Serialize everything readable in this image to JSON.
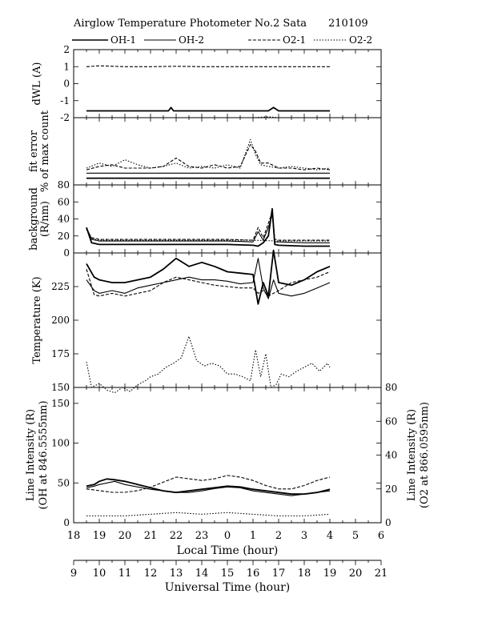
{
  "header": {
    "title": "Airglow Temperature Photometer No.2  Sata",
    "date_code": "210109"
  },
  "legend": {
    "oh1": "OH-1",
    "oh2": "OH-2",
    "o21": "O2-1",
    "o22": "O2-2"
  },
  "chart_data": [
    {
      "id": "dwl",
      "type": "line",
      "ylabel": "dWL (A)",
      "ylim": [
        -2,
        2
      ],
      "yticks": [
        2,
        1,
        0,
        -1,
        -2
      ],
      "x_unit": "local hour",
      "series": [
        {
          "name": "OH-1",
          "style": "solid",
          "x": [
            18.5,
            19,
            20,
            21,
            21.7,
            21.8,
            21.9,
            22,
            23,
            0,
            1,
            1.6,
            1.8,
            2,
            3,
            4
          ],
          "y": [
            -1.6,
            -1.6,
            -1.6,
            -1.6,
            -1.6,
            -1.4,
            -1.6,
            -1.6,
            -1.6,
            -1.6,
            -1.6,
            -1.6,
            -1.4,
            -1.6,
            -1.6,
            -1.6
          ]
        },
        {
          "name": "O2-1",
          "style": "dashed",
          "x": [
            18.5,
            19,
            20,
            21,
            22,
            23,
            0,
            1,
            2,
            3,
            4
          ],
          "y": [
            1.0,
            1.05,
            1.0,
            1.0,
            1.02,
            1.0,
            1.0,
            1.0,
            1.0,
            1.0,
            1.0
          ]
        },
        {
          "name": "O2-2",
          "style": "dotted",
          "x": [
            0,
            1,
            1.6,
            2,
            3,
            4
          ],
          "y": [
            -2.0,
            -2.0,
            -1.95,
            -2.0,
            -2.0,
            -2.0
          ]
        }
      ]
    },
    {
      "id": "fit",
      "type": "line",
      "ylabel": [
        "fit error",
        "% of max count"
      ],
      "ylim": [
        0,
        4
      ],
      "yticks": [],
      "x_unit": "local hour",
      "series": [
        {
          "name": "OH-1",
          "style": "solid",
          "x": [
            18.5,
            19,
            20,
            21,
            22,
            23,
            0,
            1,
            2,
            3,
            4
          ],
          "y": [
            0.4,
            0.4,
            0.4,
            0.4,
            0.4,
            0.4,
            0.4,
            0.4,
            0.4,
            0.4,
            0.4
          ]
        },
        {
          "name": "OH-2",
          "style": "solid",
          "x": [
            18.5,
            19,
            20,
            21,
            22,
            23,
            0,
            1,
            2,
            3,
            4
          ],
          "y": [
            0.7,
            0.7,
            0.7,
            0.7,
            0.7,
            0.7,
            0.7,
            0.7,
            0.7,
            0.7,
            0.7
          ]
        },
        {
          "name": "O2-1",
          "style": "dashed",
          "x": [
            18.5,
            19,
            19.5,
            20,
            20.5,
            21,
            21.5,
            22,
            22.5,
            23,
            23.5,
            0,
            0.5,
            0.9,
            1.1,
            1.3,
            1.6,
            2,
            2.5,
            3,
            3.5,
            4
          ],
          "y": [
            0.9,
            1.1,
            1.2,
            1.0,
            1.0,
            1.0,
            1.1,
            1.6,
            1.1,
            1.0,
            1.2,
            1.0,
            1.1,
            2.4,
            2.0,
            1.3,
            1.3,
            1.0,
            1.0,
            0.9,
            1.0,
            0.9
          ]
        },
        {
          "name": "O2-2",
          "style": "dotted",
          "x": [
            18.5,
            19,
            19.5,
            20,
            20.5,
            21,
            21.5,
            22,
            22.5,
            23,
            23.5,
            0,
            0.5,
            0.9,
            1.1,
            1.3,
            1.6,
            2,
            2.5,
            3,
            3.5,
            4
          ],
          "y": [
            1.0,
            1.3,
            1.1,
            1.5,
            1.2,
            1.0,
            1.1,
            1.3,
            1.0,
            1.1,
            1.0,
            1.2,
            1.0,
            2.7,
            1.8,
            1.2,
            1.1,
            1.0,
            1.1,
            1.0,
            0.9,
            1.0
          ]
        }
      ]
    },
    {
      "id": "bg",
      "type": "line",
      "ylabel": [
        "background",
        "(R/nm)"
      ],
      "ylim": [
        0,
        80
      ],
      "yticks": [
        80,
        60,
        40,
        20,
        0
      ],
      "x_unit": "local hour",
      "series": [
        {
          "name": "OH-1",
          "style": "solid",
          "x": [
            18.5,
            18.7,
            19,
            20,
            21,
            22,
            23,
            0,
            1,
            1.2,
            1.4,
            1.6,
            1.75,
            1.85,
            2,
            3,
            4
          ],
          "y": [
            30,
            12,
            10,
            10,
            10,
            10,
            10,
            10,
            9,
            8,
            12,
            20,
            52,
            10,
            9,
            8,
            8
          ]
        },
        {
          "name": "OH-2",
          "style": "solid",
          "x": [
            18.5,
            18.7,
            19,
            20,
            21,
            22,
            23,
            0,
            1,
            1.2,
            1.4,
            1.6,
            1.75,
            1.85,
            2,
            3,
            4
          ],
          "y": [
            30,
            16,
            14,
            14,
            14,
            14,
            14,
            14,
            13,
            25,
            15,
            30,
            45,
            13,
            13,
            12,
            12
          ]
        },
        {
          "name": "O2-1",
          "style": "dashed",
          "x": [
            18.5,
            18.7,
            19,
            20,
            21,
            22,
            23,
            0,
            1,
            1.2,
            1.4,
            1.6,
            1.75,
            1.85,
            2,
            3,
            4
          ],
          "y": [
            28,
            18,
            16,
            16,
            16,
            16,
            16,
            16,
            15,
            30,
            18,
            35,
            48,
            16,
            15,
            15,
            15
          ]
        },
        {
          "name": "O2-2",
          "style": "dotted",
          "x": [
            18.5,
            18.7,
            19,
            20,
            21,
            22,
            23,
            0,
            1,
            2,
            3,
            4
          ],
          "y": [
            28,
            17,
            15,
            15,
            15,
            15,
            15,
            15,
            15,
            14,
            14,
            14
          ]
        }
      ]
    },
    {
      "id": "temp",
      "type": "line",
      "ylabel": "Temperature (K)",
      "ylim": [
        150,
        250
      ],
      "yticks": [
        225,
        200,
        175,
        150
      ],
      "x_unit": "local hour",
      "series": [
        {
          "name": "OH-1",
          "style": "solid",
          "x": [
            18.5,
            18.8,
            19,
            19.5,
            20,
            20.5,
            21,
            21.5,
            22,
            22.5,
            23,
            23.5,
            0,
            0.5,
            1,
            1.2,
            1.4,
            1.6,
            1.8,
            2,
            2.5,
            3,
            3.5,
            4
          ],
          "y": [
            242,
            232,
            230,
            228,
            228,
            230,
            232,
            238,
            246,
            240,
            243,
            240,
            236,
            235,
            234,
            212,
            228,
            218,
            252,
            228,
            226,
            230,
            236,
            240
          ]
        },
        {
          "name": "OH-2",
          "style": "solid",
          "x": [
            18.5,
            18.8,
            19,
            19.5,
            20,
            20.5,
            21,
            21.5,
            22,
            22.5,
            23,
            23.5,
            0,
            0.5,
            1,
            1.2,
            1.4,
            1.6,
            1.8,
            2,
            2.5,
            3,
            3.5,
            4
          ],
          "y": [
            230,
            222,
            220,
            222,
            220,
            224,
            226,
            228,
            230,
            232,
            230,
            230,
            229,
            227,
            228,
            246,
            224,
            216,
            230,
            220,
            218,
            220,
            224,
            228
          ]
        },
        {
          "name": "O2-1",
          "style": "dashed",
          "x": [
            18.5,
            18.8,
            19,
            19.5,
            20,
            20.5,
            21,
            21.5,
            22,
            22.5,
            23,
            23.5,
            0,
            0.5,
            1,
            1.2,
            1.4,
            1.6,
            1.8,
            2,
            2.5,
            3,
            3.5,
            4
          ],
          "y": [
            238,
            219,
            218,
            220,
            218,
            220,
            222,
            228,
            232,
            230,
            228,
            226,
            225,
            224,
            224,
            220,
            222,
            218,
            220,
            222,
            228,
            230,
            232,
            236
          ]
        },
        {
          "name": "O2-2",
          "style": "dotted",
          "x": [
            18.5,
            18.7,
            19,
            19.3,
            19.6,
            19.9,
            20.2,
            20.5,
            20.8,
            21,
            21.3,
            21.6,
            21.9,
            22.2,
            22.5,
            22.8,
            23.1,
            23.4,
            23.7,
            0,
            0.3,
            0.6,
            0.9,
            1.1,
            1.3,
            1.5,
            1.7,
            1.9,
            2.1,
            2.4,
            2.7,
            3,
            3.3,
            3.6,
            3.9,
            4
          ],
          "y": [
            169,
            150,
            153,
            148,
            146,
            150,
            147,
            152,
            155,
            158,
            160,
            165,
            168,
            172,
            188,
            170,
            166,
            168,
            166,
            160,
            160,
            158,
            155,
            178,
            158,
            175,
            150,
            152,
            160,
            158,
            162,
            165,
            168,
            162,
            168,
            165
          ]
        }
      ]
    },
    {
      "id": "int",
      "type": "line",
      "ylabel_left": [
        "Line Intensity (R)",
        "(OH at 846.5555nm)"
      ],
      "ylabel_right": [
        "Line Intensity (R)",
        "(O2 at 866.0595nm)"
      ],
      "ylim": [
        0,
        170
      ],
      "yticks": [
        150,
        100,
        50,
        0
      ],
      "ylim_right": [
        0,
        80
      ],
      "yticks_right": [
        80,
        60,
        40,
        20,
        0
      ],
      "x_unit": "local hour",
      "series": [
        {
          "name": "OH-1",
          "style": "solid",
          "x": [
            18.5,
            18.8,
            19,
            19.3,
            19.6,
            20,
            20.5,
            21,
            21.5,
            22,
            22.5,
            23,
            23.5,
            0,
            0.5,
            1,
            1.5,
            2,
            2.5,
            3,
            3.5,
            4
          ],
          "y": [
            46,
            48,
            52,
            55,
            54,
            52,
            48,
            44,
            40,
            38,
            40,
            42,
            44,
            46,
            45,
            42,
            40,
            38,
            36,
            36,
            38,
            42
          ]
        },
        {
          "name": "OH-2",
          "style": "solid",
          "x": [
            18.5,
            18.8,
            19,
            19.3,
            19.6,
            20,
            20.5,
            21,
            21.5,
            22,
            22.5,
            23,
            23.5,
            0,
            0.5,
            1,
            1.5,
            2,
            2.5,
            3,
            3.5,
            4
          ],
          "y": [
            44,
            46,
            48,
            50,
            52,
            48,
            45,
            42,
            40,
            38,
            38,
            40,
            43,
            45,
            44,
            40,
            38,
            36,
            34,
            36,
            38,
            40
          ]
        },
        {
          "name": "O2-1",
          "style": "dashed",
          "axis": "right",
          "x": [
            18.5,
            19,
            19.5,
            20,
            20.5,
            21,
            21.5,
            22,
            22.5,
            23,
            23.5,
            0,
            0.5,
            1,
            1.5,
            2,
            2.5,
            3,
            3.5,
            4
          ],
          "y": [
            20,
            19,
            18,
            18,
            19,
            21,
            24,
            27,
            26,
            25,
            26,
            28,
            27,
            25,
            22,
            20,
            20,
            22,
            25,
            27
          ]
        },
        {
          "name": "O2-2",
          "style": "dotted",
          "axis": "right",
          "x": [
            18.5,
            19,
            20,
            21,
            22,
            23,
            0,
            1,
            2,
            3,
            4
          ],
          "y": [
            4,
            4,
            4,
            5,
            6,
            5,
            6,
            5,
            4,
            4,
            5
          ]
        }
      ]
    }
  ],
  "x_axis_local": {
    "label": "Local Time (hour)",
    "ticks": [
      "18",
      "19",
      "20",
      "21",
      "22",
      "23",
      "0",
      "1",
      "2",
      "3",
      "4",
      "5",
      "6"
    ]
  },
  "x_axis_ut": {
    "label": "Universal Time (hour)",
    "ticks": [
      "9",
      "10",
      "11",
      "12",
      "13",
      "14",
      "15",
      "16",
      "17",
      "18",
      "19",
      "20",
      "21"
    ]
  }
}
